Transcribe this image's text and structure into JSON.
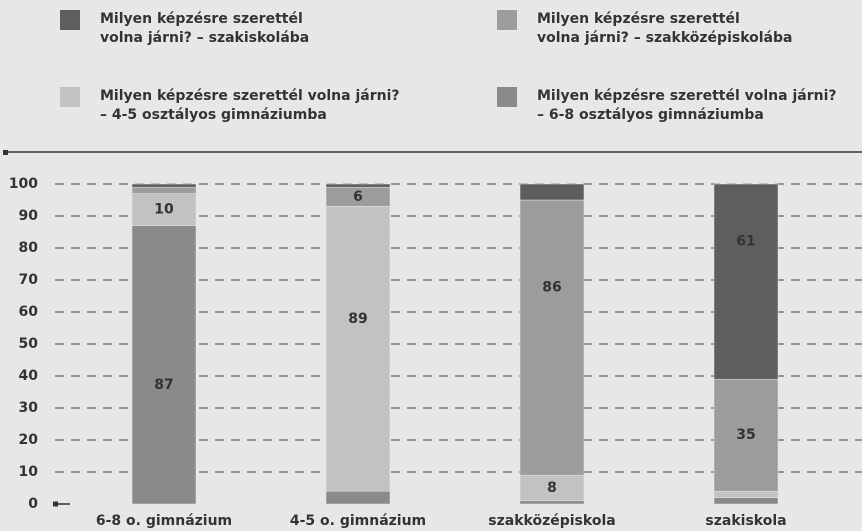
{
  "chart_data": {
    "type": "stacked_bar",
    "categories": [
      "6-8 o. gimnázium",
      "4-5 o. gimnázium",
      "szakközépiskola",
      "szakiskola"
    ],
    "series": [
      {
        "name": "Milyen képzésre szerettél\nvolna járni? – szakiskolába",
        "color": "#5e5e5e",
        "values": [
          1,
          1,
          5,
          61
        ]
      },
      {
        "name": "Milyen képzésre szerettél\nvolna járni? – szakközépiskolába",
        "color": "#9c9c9c",
        "values": [
          2,
          6,
          86,
          35
        ]
      },
      {
        "name": "Milyen képzésre szerettél volna járni?\n– 4-5 osztályos gimnáziumba",
        "color": "#c2c2c2",
        "values": [
          10,
          89,
          8,
          2
        ]
      },
      {
        "name": "Milyen képzésre szerettél volna járni?\n– 6-8 osztályos gimnáziumba",
        "color": "#8a8a8a",
        "values": [
          87,
          4,
          1,
          2
        ]
      }
    ],
    "ylim": [
      0,
      100
    ],
    "yticks": [
      0,
      10,
      20,
      30,
      40,
      50,
      60,
      70,
      80,
      90,
      100
    ],
    "grid": true
  }
}
